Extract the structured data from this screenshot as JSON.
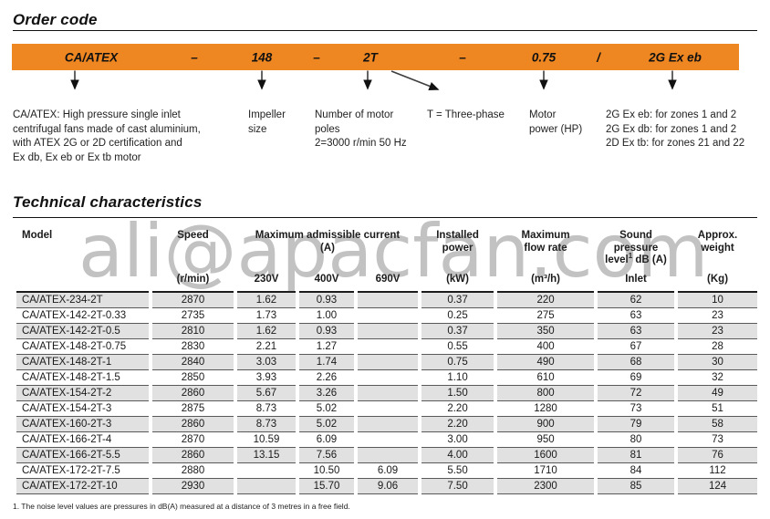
{
  "titles": {
    "order_code": "Order code",
    "technical": "Technical characteristics"
  },
  "watermark": "ali@apacfan.com",
  "accent_color": "#EE8621",
  "order_code": {
    "segments": [
      "CA/ATEX",
      "–",
      "148",
      "–",
      "2T",
      "–",
      "0.75",
      "/",
      "2G Ex eb"
    ],
    "explanations": [
      "CA/ATEX: High pressure single inlet\ncentrifugal fans made of cast aluminium,\nwith ATEX 2G or 2D certification and\nEx db, Ex eb or Ex tb motor",
      "Impeller\nsize",
      "Number of motor\npoles\n2=3000 r/min 50 Hz",
      "T = Three-phase",
      "Motor\npower (HP)",
      "2G Ex eb: for zones 1 and 2\n2G Ex db: for zones 1 and 2\n2D Ex tb: for zones 21 and 22"
    ]
  },
  "table": {
    "header": {
      "model": "Model",
      "speed": "Speed",
      "speed_unit": "(r/min)",
      "current_group": "Maximum admissible current\n(A)",
      "volt_230": "230V",
      "volt_400": "400V",
      "volt_690": "690V",
      "power": "Installed\npower",
      "power_unit": "(kW)",
      "flow": "Maximum\nflow rate",
      "flow_unit": "(m³/h)",
      "sound_line1": "Sound pressure",
      "sound_level_word": "level",
      "sound_sup": "1",
      "sound_rest": "dB (A)",
      "sound_unit": "Inlet",
      "weight": "Approx.\nweight",
      "weight_unit": "(Kg)"
    },
    "rows": [
      [
        "CA/ATEX-234-2T",
        "2870",
        "1.62",
        "0.93",
        "",
        "0.37",
        "220",
        "62",
        "10"
      ],
      [
        "CA/ATEX-142-2T-0.33",
        "2735",
        "1.73",
        "1.00",
        "",
        "0.25",
        "275",
        "63",
        "23"
      ],
      [
        "CA/ATEX-142-2T-0.5",
        "2810",
        "1.62",
        "0.93",
        "",
        "0.37",
        "350",
        "63",
        "23"
      ],
      [
        "CA/ATEX-148-2T-0.75",
        "2830",
        "2.21",
        "1.27",
        "",
        "0.55",
        "400",
        "67",
        "28"
      ],
      [
        "CA/ATEX-148-2T-1",
        "2840",
        "3.03",
        "1.74",
        "",
        "0.75",
        "490",
        "68",
        "30"
      ],
      [
        "CA/ATEX-148-2T-1.5",
        "2850",
        "3.93",
        "2.26",
        "",
        "1.10",
        "610",
        "69",
        "32"
      ],
      [
        "CA/ATEX-154-2T-2",
        "2860",
        "5.67",
        "3.26",
        "",
        "1.50",
        "800",
        "72",
        "49"
      ],
      [
        "CA/ATEX-154-2T-3",
        "2875",
        "8.73",
        "5.02",
        "",
        "2.20",
        "1280",
        "73",
        "51"
      ],
      [
        "CA/ATEX-160-2T-3",
        "2860",
        "8.73",
        "5.02",
        "",
        "2.20",
        "900",
        "79",
        "58"
      ],
      [
        "CA/ATEX-166-2T-4",
        "2870",
        "10.59",
        "6.09",
        "",
        "3.00",
        "950",
        "80",
        "73"
      ],
      [
        "CA/ATEX-166-2T-5.5",
        "2860",
        "13.15",
        "7.56",
        "",
        "4.00",
        "1600",
        "81",
        "76"
      ],
      [
        "CA/ATEX-172-2T-7.5",
        "2880",
        "",
        "10.50",
        "6.09",
        "5.50",
        "1710",
        "84",
        "112"
      ],
      [
        "CA/ATEX-172-2T-10",
        "2930",
        "",
        "15.70",
        "9.06",
        "7.50",
        "2300",
        "85",
        "124"
      ]
    ]
  },
  "footnote": "1. The noise level values are pressures in dB(A) measured at a distance of 3 metres in a free field."
}
